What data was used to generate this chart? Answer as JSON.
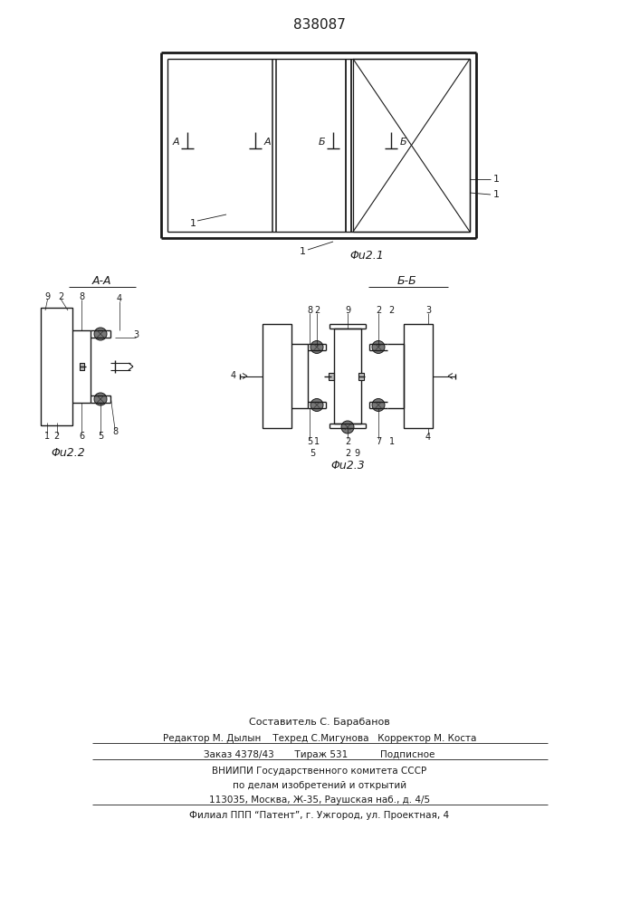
{
  "patent_number": "838087",
  "line_color": "#1a1a1a",
  "fig1_caption": "Φu2.1",
  "fig2_caption": "Φu2.2",
  "fig3_caption": "Φu2.3",
  "section_AA": "A-A",
  "section_BB": "Б-Б",
  "footer_lines": [
    "Составитель С. Барабанов",
    "Редактор М. Дылын    Техред С.Мигунова   Корректор М. Коста",
    "Заказ 4378/43       Тираж 531           Подписное",
    "ВНИИПИ Государственного комитета СССР",
    "по делам изобретений и открытий",
    "113035, Москва, Ж-35, Раушская наб., д. 4/5",
    "Филиал ППП “Патент”, г. Ужгород, ул. Проектная, 4"
  ]
}
